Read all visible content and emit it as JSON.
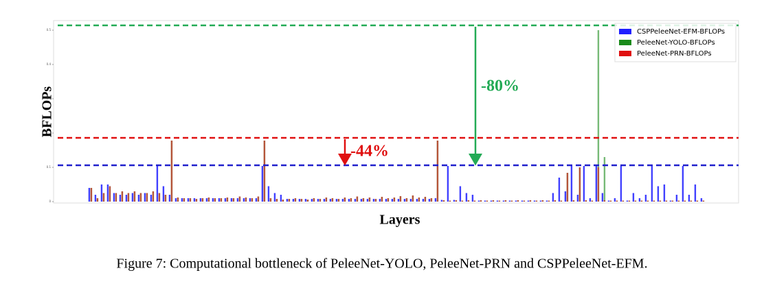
{
  "chart_data": {
    "type": "bar",
    "y_label": "BFLOPs",
    "x_label": "Layers",
    "categories": [
      null,
      null,
      null,
      null,
      null,
      null,
      null,
      null,
      null,
      null,
      null,
      null,
      null,
      null,
      null,
      null,
      null,
      null,
      null,
      null,
      null,
      null,
      null,
      null,
      null,
      null,
      null,
      null,
      null,
      null,
      null,
      null,
      null,
      null,
      null,
      null,
      null,
      null,
      null,
      null,
      null,
      null,
      null,
      null,
      null,
      null,
      null,
      null,
      null,
      null,
      null,
      null,
      null,
      null,
      null,
      null,
      null,
      null,
      null,
      null,
      null,
      null,
      null,
      null,
      null,
      null,
      null,
      null,
      null,
      null,
      null,
      null,
      null,
      null,
      null,
      null,
      null,
      null,
      null,
      null,
      null,
      null,
      null,
      null,
      null,
      null,
      null,
      null,
      null,
      null,
      null,
      null,
      null,
      null,
      null,
      null,
      null,
      null,
      null,
      null
    ],
    "series": [
      {
        "name": "CSPPeleeNet-EFM-BFLOPs",
        "color": "#1f1fff",
        "values": [
          0.04,
          0.02,
          0.05,
          0.05,
          0.025,
          0.02,
          0.02,
          0.025,
          0.02,
          0.025,
          0.02,
          0.104,
          0.045,
          0.02,
          0.01,
          0.01,
          0.01,
          0.01,
          0.01,
          0.01,
          0.01,
          0.01,
          0.01,
          0.01,
          0.01,
          0.01,
          0.01,
          0.01,
          0.104,
          0.045,
          0.025,
          0.02,
          0.008,
          0.008,
          0.008,
          0.008,
          0.008,
          0.008,
          0.008,
          0.008,
          0.008,
          0.008,
          0.008,
          0.008,
          0.008,
          0.008,
          0.008,
          0.008,
          0.008,
          0.008,
          0.008,
          0.008,
          0.008,
          0.008,
          0.008,
          0.008,
          0.01,
          0.005,
          0.104,
          0.005,
          0.045,
          0.025,
          0.02,
          0.003,
          0.003,
          0.003,
          0.003,
          0.003,
          0.003,
          0.003,
          0.003,
          0.003,
          0.003,
          0.003,
          0.003,
          0.025,
          0.07,
          0.03,
          0.104,
          0.02,
          0.104,
          0.01,
          0.104,
          0.025,
          0.003,
          0.01,
          0.104,
          0.003,
          0.025,
          0.01,
          0.02,
          0.104,
          0.045,
          0.05,
          0.003,
          0.02,
          0.104,
          0.02,
          0.05,
          0.01
        ]
      },
      {
        "name": "PeleeNet-YOLO-BFLOPs",
        "color": "#1a8a1a",
        "values": [
          0.04,
          0.01,
          0.025,
          0.045,
          0.025,
          0.03,
          0.025,
          0.03,
          0.025,
          0.025,
          0.03,
          0.025,
          0.02,
          0.178,
          0.012,
          0.01,
          0.01,
          0.008,
          0.01,
          0.012,
          0.01,
          0.01,
          0.012,
          0.01,
          0.015,
          0.012,
          0.01,
          0.015,
          0.178,
          0.01,
          0.008,
          0.006,
          0.008,
          0.01,
          0.008,
          0.006,
          0.01,
          0.008,
          0.012,
          0.01,
          0.008,
          0.012,
          0.01,
          0.015,
          0.01,
          0.012,
          0.008,
          0.014,
          0.01,
          0.012,
          0.016,
          0.01,
          0.018,
          0.012,
          0.014,
          0.01,
          0.178,
          0.004,
          0.003,
          0.004,
          0.003,
          0.004,
          0.003,
          0.004,
          0.003,
          0.004,
          0.003,
          0.004,
          0.003,
          0.004,
          0.003,
          0.004,
          0.003,
          0.004,
          0.003,
          0.004,
          0.003,
          0.084,
          0.004,
          0.1,
          0.004,
          0.003,
          0.5,
          0.13,
          0.003,
          0.003,
          0.003,
          0.003,
          0.003,
          0.003,
          0.003,
          0.003,
          0.003,
          0.003,
          0.003,
          0.003,
          0.003,
          0.003,
          0.003,
          0.003
        ]
      },
      {
        "name": "PeleeNet-PRN-BFLOPs",
        "color": "#e01010",
        "values": [
          0.04,
          0.01,
          0.025,
          0.045,
          0.025,
          0.03,
          0.025,
          0.03,
          0.025,
          0.025,
          0.03,
          0.025,
          0.02,
          0.178,
          0.012,
          0.01,
          0.01,
          0.008,
          0.01,
          0.012,
          0.01,
          0.01,
          0.012,
          0.01,
          0.015,
          0.012,
          0.01,
          0.015,
          0.178,
          0.01,
          0.008,
          0.006,
          0.008,
          0.01,
          0.008,
          0.006,
          0.01,
          0.008,
          0.012,
          0.01,
          0.008,
          0.012,
          0.01,
          0.015,
          0.01,
          0.012,
          0.008,
          0.014,
          0.01,
          0.012,
          0.016,
          0.01,
          0.018,
          0.012,
          0.014,
          0.01,
          0.178,
          0.004,
          0.003,
          0.004,
          0.003,
          0.004,
          0.003,
          0.004,
          0.003,
          0.004,
          0.003,
          0.004,
          0.003,
          0.004,
          0.003,
          0.004,
          0.003,
          0.004,
          0.003,
          0.004,
          0.003,
          0.084,
          0.004,
          0.1,
          0.004,
          0.003,
          0.1,
          0.004,
          0.003,
          0.003,
          0.003,
          0.003,
          0.003,
          0.003,
          0.003,
          0.003,
          0.003,
          0.003,
          0.003,
          0.003,
          0.003,
          0.003,
          0.003,
          0.003
        ]
      }
    ],
    "ylim": [
      0,
      0.528
    ],
    "yticks": [
      0,
      0.1,
      0.2,
      0.3,
      0.4,
      0.5
    ],
    "reference_lines": [
      {
        "value": 0.514,
        "color": "#22aa55"
      },
      {
        "value": 0.186,
        "color": "#e01010"
      },
      {
        "value": 0.106,
        "color": "#1f1fcc"
      }
    ],
    "annotations": [
      {
        "text": "-80%",
        "color": "#22aa55"
      },
      {
        "text": "-44%",
        "color": "#e01010"
      }
    ],
    "legend": "upper right"
  },
  "caption": "Figure 7: Computational bottleneck of PeleeNet-YOLO, PeleeNet-PRN and CSPPeleeNet-EFM."
}
